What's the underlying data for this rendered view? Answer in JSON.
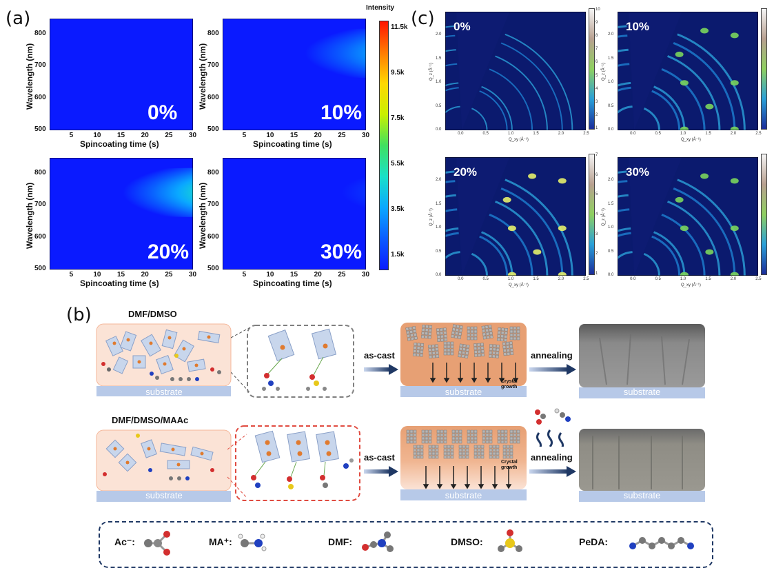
{
  "panel_a": {
    "letter": "(a)",
    "plots": [
      {
        "label": "0%",
        "xlabel": "Spincoating time (s)",
        "ylabel": "Wavelength (nm)",
        "peak": 0.15
      },
      {
        "label": "10%",
        "xlabel": "Spincoating time (s)",
        "ylabel": "Wavelength (nm)",
        "peak": 0.65
      },
      {
        "label": "20%",
        "xlabel": "Spincoating time (s)",
        "ylabel": "Wavelength (nm)",
        "peak": 0.85
      },
      {
        "label": "30%",
        "xlabel": "Spincoating time (s)",
        "ylabel": "Wavelength (nm)",
        "peak": 0.32
      }
    ],
    "xticks": [
      "5",
      "10",
      "15",
      "20",
      "25",
      "30"
    ],
    "yticks": [
      "500",
      "600",
      "700",
      "800"
    ],
    "colorbar": {
      "title": "Intensity",
      "ticks": [
        "11.5k",
        "9.5k",
        "7.5k",
        "5.5k",
        "3.5k",
        "1.5k"
      ]
    }
  },
  "panel_c": {
    "letter": "(c)",
    "plots": [
      {
        "label": "0%",
        "cbar_ticks": [
          "10",
          "9",
          "8",
          "7",
          "6",
          "5",
          "4",
          "3",
          "2",
          "1"
        ]
      },
      {
        "label": "10%",
        "cbar_ticks": []
      },
      {
        "label": "20%",
        "cbar_ticks": [
          "7",
          "6",
          "5",
          "4",
          "3",
          "2",
          "1"
        ]
      },
      {
        "label": "30%",
        "cbar_ticks": []
      }
    ],
    "xticks": [
      "0.0",
      "0.5",
      "1.0",
      "1.5",
      "2.0",
      "2.5"
    ],
    "yticks": [
      "0.0",
      "0.5",
      "1.0",
      "1.5",
      "2.0"
    ],
    "xlabel": "Q_xy (Å⁻¹)",
    "ylabel": "Q_z (Å⁻¹)"
  },
  "panel_b": {
    "letter": "(b)",
    "row1_title": "DMF/DMSO",
    "row2_title": "DMF/DMSO/MAAc",
    "substrate": "substrate",
    "ascast": "as-cast",
    "annealing": "annealing",
    "crystal": "Crystal",
    "growth": "growth",
    "legend": [
      {
        "label": "Ac⁻:"
      },
      {
        "label": "MA⁺:"
      },
      {
        "label": "DMF:"
      },
      {
        "label": "DMSO:"
      },
      {
        "label": "PeDA:"
      }
    ],
    "colors": {
      "film": "#fbe3d6",
      "crystal": "#e7a074",
      "substrate": "#b7c9e8",
      "arrow": "#1f3864",
      "dash_gray": "#7f7f7f",
      "dash_red": "#e04b40"
    }
  }
}
